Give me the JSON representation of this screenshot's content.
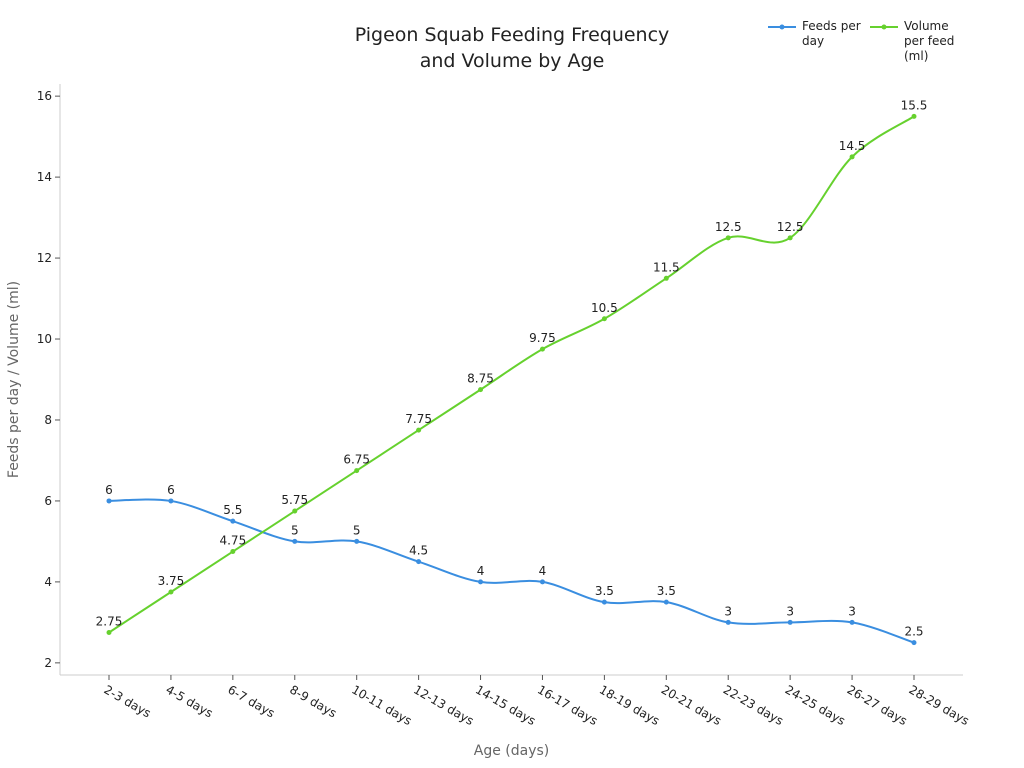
{
  "chart_data": {
    "type": "line",
    "title": "Pigeon Squab Feeding Frequency and Volume by Age",
    "x_label": "Age (days)",
    "y_label": "Feeds per day / Volume (ml)",
    "categories": [
      "2-3 days",
      "4-5 days",
      "6-7 days",
      "8-9 days",
      "10-11 days",
      "12-13 days",
      "14-15 days",
      "16-17 days",
      "18-19 days",
      "20-21 days",
      "22-23 days",
      "24-25 days",
      "26-27 days",
      "28-29 days"
    ],
    "series": [
      {
        "name": "Feeds per day",
        "color": "#3a8ee0",
        "values": [
          6,
          6,
          5.5,
          5,
          5,
          4.5,
          4,
          4,
          3.5,
          3.5,
          3,
          3,
          3,
          2.5
        ]
      },
      {
        "name": "Volume per feed (ml)",
        "color": "#66d12e",
        "values": [
          2.75,
          3.75,
          4.75,
          5.75,
          6.75,
          7.75,
          8.75,
          9.75,
          10.5,
          11.5,
          12.5,
          12.5,
          14.5,
          15.5
        ]
      }
    ],
    "ylim": [
      1.7,
      16.3
    ],
    "yticks": [
      2,
      4,
      6,
      8,
      10,
      12,
      14,
      16
    ],
    "legend": "top-right",
    "data_labels": true
  }
}
